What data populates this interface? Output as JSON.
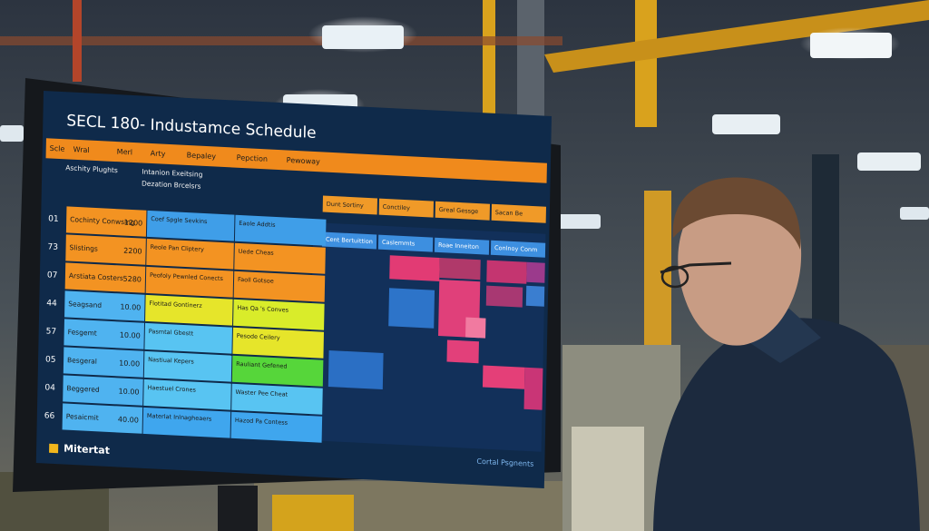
{
  "screen": {
    "title": "SECL 180- Industamce Schedule",
    "header": [
      "Scle",
      "Wral",
      "Merl",
      "Arty",
      "Bepaley",
      "Pepction",
      "Pewoway"
    ],
    "subheader": [
      "Aschity Plughts",
      "Intanion Exeitsing",
      "Dezation Brcelsrs"
    ],
    "right_top": [
      "Dunt Sortiny",
      "Conctiley",
      "Greal Gessge",
      "Sacan Be"
    ],
    "right_second": [
      "Cent Bertuittion",
      "Caslemmts",
      "Roae Inneiton",
      "Conlnoy Conm"
    ],
    "rows": [
      {
        "id": "01",
        "label": "Cochinty Conwsing",
        "value": "1200"
      },
      {
        "id": "73",
        "label": "Slistings",
        "value": "2200"
      },
      {
        "id": "07",
        "label": "Arstiata Costers",
        "value": "5280"
      },
      {
        "id": "44",
        "label": "Seagsand",
        "value": "10.00"
      },
      {
        "id": "57",
        "label": "Fesgemt",
        "value": "10.00"
      },
      {
        "id": "05",
        "label": "Besgeral",
        "value": "10.00"
      },
      {
        "id": "04",
        "label": "Beggered",
        "value": "10.00"
      },
      {
        "id": "66",
        "label": "Pesaicmit",
        "value": "40.00"
      }
    ],
    "col1": [
      "Coef Spgle Sevkins",
      "Reole Pan Cliptery",
      "Peofoly Pewnled Conects",
      "Flotitad Gontinerz",
      "Pasmtal Gbestt",
      "Nastiual Kepers",
      "Haestuel Crones",
      "Materlat Inlnagheaers"
    ],
    "col2": [
      "Eaole Addtis",
      "Uede Cheas",
      "Faoll Gotsoe",
      "Has Qa 's Conves",
      "Pesode Ceilery",
      "Rauliant Gefened",
      "Waster Pee Cheat",
      "Hazod Pa Contess"
    ],
    "logo": "Mitertat",
    "footer_right": "Cortal Psgnents"
  }
}
